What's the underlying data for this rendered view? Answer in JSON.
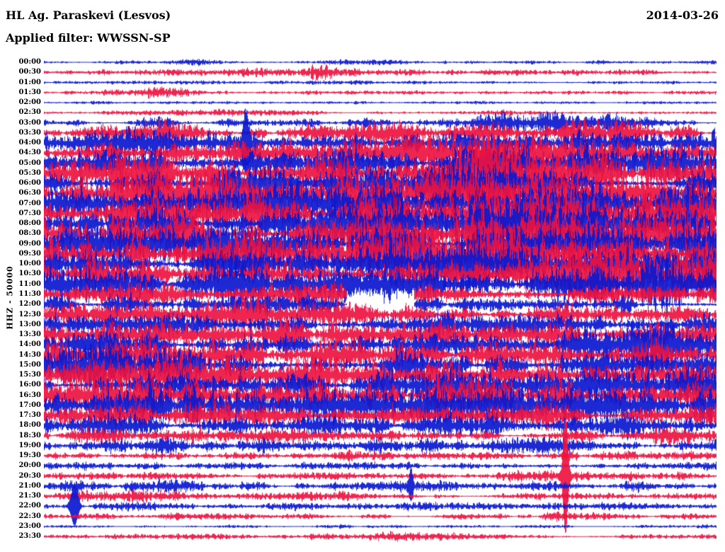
{
  "header": {
    "station": "HL Ag. Paraskevi (Lesvos)",
    "date": "2014-03-26",
    "filter": "Applied filter: WWSSN-SP"
  },
  "axis": {
    "y_label": "HHZ - 50000"
  },
  "chart_data": {
    "type": "line",
    "subtype": "helicorder-daily-seismogram",
    "title": "HL Ag. Paraskevi (Lesvos)",
    "date": "2014-03-26",
    "channel": "HHZ",
    "scale": 50000,
    "filter": "WWSSN-SP",
    "row_interval_minutes": 30,
    "rows_count": 48,
    "legend_position": "none",
    "grid": false,
    "colors": {
      "blue": "#0a18cf",
      "red": "#ec1240"
    },
    "amplitude_note": "env = 12 relative amplitude control points across each 30-min row (1.0 = full-scale excursion); sp = transient spikes [x_fraction, rel_amplitude, width_px]; gap = data gap [x_fraction_start, x_fraction_end]",
    "rows": [
      {
        "t": "00:00",
        "c": "b",
        "env": [
          0.06,
          0.05,
          0.07,
          0.06,
          0.05,
          0.06,
          0.06,
          0.05,
          0.06,
          0.06,
          0.05,
          0.05
        ]
      },
      {
        "t": "00:30",
        "c": "r",
        "env": [
          0.07,
          0.07,
          0.08,
          0.1,
          0.22,
          0.18,
          0.08,
          0.07,
          0.09,
          0.07,
          0.07,
          0.07
        ]
      },
      {
        "t": "01:00",
        "c": "b",
        "env": [
          0.05,
          0.05,
          0.06,
          0.05,
          0.05,
          0.06,
          0.05,
          0.05,
          0.05,
          0.05,
          0.05,
          0.05
        ]
      },
      {
        "t": "01:30",
        "c": "r",
        "env": [
          0.06,
          0.06,
          0.22,
          0.18,
          0.07,
          0.06,
          0.06,
          0.06,
          0.06,
          0.06,
          0.06,
          0.06
        ]
      },
      {
        "t": "02:00",
        "c": "b",
        "env": [
          0.04,
          0.04,
          0.04,
          0.04,
          0.04,
          0.04,
          0.04,
          0.04,
          0.04,
          0.04,
          0.04,
          0.04
        ]
      },
      {
        "t": "02:30",
        "c": "r",
        "env": [
          0.05,
          0.05,
          0.06,
          0.1,
          0.08,
          0.05,
          0.05,
          0.05,
          0.06,
          0.05,
          0.05,
          0.05
        ]
      },
      {
        "t": "03:00",
        "c": "b",
        "env": [
          0.1,
          0.1,
          0.18,
          0.12,
          0.1,
          0.1,
          0.12,
          0.25,
          0.35,
          0.3,
          0.15,
          0.1
        ]
      },
      {
        "t": "03:30",
        "c": "r",
        "env": [
          0.15,
          0.2,
          0.3,
          0.25,
          0.2,
          0.3,
          0.25,
          0.2,
          0.25,
          0.5,
          0.3,
          0.15
        ]
      },
      {
        "t": "04:00",
        "c": "b",
        "env": [
          0.35,
          0.4,
          0.35,
          0.45,
          0.35,
          0.3,
          0.35,
          0.3,
          0.35,
          0.45,
          0.55,
          0.5
        ],
        "sp": [
          [
            0.3,
            0.9,
            4
          ]
        ]
      },
      {
        "t": "04:30",
        "c": "r",
        "env": [
          0.25,
          0.3,
          0.3,
          0.35,
          0.35,
          0.45,
          0.5,
          0.4,
          0.45,
          0.4,
          0.35,
          0.3
        ]
      },
      {
        "t": "05:00",
        "c": "b",
        "env": [
          0.35,
          0.4,
          0.4,
          0.35,
          0.4,
          0.45,
          0.55,
          0.6,
          0.65,
          0.6,
          0.55,
          0.5
        ]
      },
      {
        "t": "05:30",
        "c": "r",
        "env": [
          0.4,
          0.45,
          0.45,
          0.4,
          0.45,
          0.55,
          0.6,
          0.85,
          0.9,
          0.65,
          0.55,
          0.5
        ]
      },
      {
        "t": "06:00",
        "c": "b",
        "env": [
          0.45,
          0.5,
          0.55,
          0.5,
          0.45,
          0.5,
          0.55,
          0.5,
          0.55,
          0.5,
          0.45,
          0.45
        ]
      },
      {
        "t": "06:30",
        "c": "r",
        "env": [
          0.55,
          0.65,
          0.7,
          0.6,
          0.55,
          0.6,
          0.65,
          0.7,
          0.7,
          0.65,
          0.6,
          0.55
        ]
      },
      {
        "t": "07:00",
        "c": "b",
        "env": [
          0.45,
          0.5,
          0.55,
          0.5,
          0.5,
          0.55,
          0.5,
          0.55,
          0.5,
          0.55,
          0.5,
          0.45
        ]
      },
      {
        "t": "07:30",
        "c": "r",
        "env": [
          0.5,
          0.55,
          0.55,
          0.5,
          0.55,
          0.6,
          0.65,
          0.85,
          0.8,
          0.6,
          0.55,
          0.5
        ]
      },
      {
        "t": "08:00",
        "c": "b",
        "env": [
          0.45,
          0.5,
          0.5,
          0.45,
          0.55,
          0.65,
          0.55,
          0.5,
          0.65,
          0.7,
          0.55,
          0.5
        ]
      },
      {
        "t": "08:30",
        "c": "r",
        "env": [
          0.55,
          0.6,
          0.6,
          0.55,
          0.6,
          0.65,
          0.6,
          0.65,
          0.7,
          0.65,
          0.6,
          0.55
        ]
      },
      {
        "t": "09:00",
        "c": "b",
        "env": [
          0.5,
          0.55,
          0.5,
          0.5,
          0.55,
          0.5,
          0.55,
          0.5,
          0.55,
          0.5,
          0.5,
          0.45
        ]
      },
      {
        "t": "09:30",
        "c": "r",
        "env": [
          0.55,
          0.75,
          0.7,
          0.55,
          0.6,
          0.7,
          0.75,
          0.7,
          0.6,
          0.55,
          0.55,
          0.5
        ]
      },
      {
        "t": "10:00",
        "c": "b",
        "env": [
          0.4,
          0.45,
          0.4,
          0.4,
          0.45,
          0.55,
          0.65,
          0.6,
          0.45,
          0.55,
          0.7,
          0.6
        ]
      },
      {
        "t": "10:30",
        "c": "r",
        "env": [
          0.5,
          0.55,
          0.5,
          0.5,
          0.55,
          0.5,
          0.55,
          0.5,
          0.55,
          0.7,
          0.75,
          0.55
        ]
      },
      {
        "t": "11:00",
        "c": "b",
        "env": [
          0.6,
          0.55,
          0.45,
          0.55,
          0.6,
          0.45,
          0.6,
          0.5,
          0.45,
          0.55,
          0.7,
          0.65
        ]
      },
      {
        "t": "11:30",
        "c": "r",
        "env": [
          0.3,
          0.35,
          0.3,
          0.3,
          0.35,
          0.3,
          0.3,
          0.3,
          0.28,
          0.32,
          0.28,
          0.26
        ],
        "gap": [
          0.45,
          0.55
        ]
      },
      {
        "t": "12:00",
        "c": "b",
        "env": [
          0.28,
          0.32,
          0.3,
          0.28,
          0.32,
          0.28,
          0.28,
          0.3,
          0.28,
          0.3,
          0.28,
          0.26
        ],
        "gap": [
          0.45,
          0.55
        ]
      },
      {
        "t": "12:30",
        "c": "r",
        "env": [
          0.3,
          0.35,
          0.3,
          0.35,
          0.4,
          0.35,
          0.3,
          0.35,
          0.3,
          0.35,
          0.3,
          0.3
        ]
      },
      {
        "t": "13:00",
        "c": "b",
        "env": [
          0.3,
          0.3,
          0.35,
          0.3,
          0.3,
          0.35,
          0.3,
          0.3,
          0.35,
          0.3,
          0.3,
          0.3
        ]
      },
      {
        "t": "13:30",
        "c": "r",
        "env": [
          0.35,
          0.35,
          0.4,
          0.35,
          0.4,
          0.35,
          0.4,
          0.35,
          0.4,
          0.35,
          0.35,
          0.3
        ]
      },
      {
        "t": "14:00",
        "c": "b",
        "env": [
          0.35,
          0.4,
          0.35,
          0.4,
          0.35,
          0.4,
          0.45,
          0.4,
          0.35,
          0.45,
          0.65,
          0.7
        ]
      },
      {
        "t": "14:30",
        "c": "r",
        "env": [
          0.4,
          0.4,
          0.45,
          0.4,
          0.45,
          0.4,
          0.45,
          0.4,
          0.45,
          0.4,
          0.4,
          0.35
        ]
      },
      {
        "t": "15:00",
        "c": "b",
        "env": [
          0.65,
          0.55,
          0.45,
          0.4,
          0.4,
          0.45,
          0.4,
          0.4,
          0.45,
          0.4,
          0.4,
          0.4
        ]
      },
      {
        "t": "15:30",
        "c": "r",
        "env": [
          0.35,
          0.35,
          0.45,
          0.5,
          0.45,
          0.4,
          0.35,
          0.4,
          0.35,
          0.4,
          0.35,
          0.35
        ]
      },
      {
        "t": "16:00",
        "c": "b",
        "env": [
          0.35,
          0.35,
          0.4,
          0.5,
          0.4,
          0.35,
          0.4,
          0.35,
          0.35,
          0.45,
          0.55,
          0.5
        ]
      },
      {
        "t": "16:30",
        "c": "r",
        "env": [
          0.55,
          0.5,
          0.45,
          0.4,
          0.45,
          0.5,
          0.55,
          0.45,
          0.4,
          0.55,
          0.65,
          0.6
        ]
      },
      {
        "t": "17:00",
        "c": "b",
        "env": [
          0.4,
          0.45,
          0.7,
          0.55,
          0.45,
          0.4,
          0.45,
          0.4,
          0.4,
          0.5,
          0.6,
          0.6
        ]
      },
      {
        "t": "17:30",
        "c": "r",
        "env": [
          0.3,
          0.35,
          0.5,
          0.45,
          0.35,
          0.3,
          0.35,
          0.3,
          0.35,
          0.3,
          0.35,
          0.3
        ]
      },
      {
        "t": "18:00",
        "c": "b",
        "env": [
          0.25,
          0.3,
          0.25,
          0.3,
          0.25,
          0.3,
          0.45,
          0.4,
          0.3,
          0.25,
          0.3,
          0.25
        ]
      },
      {
        "t": "18:30",
        "c": "r",
        "env": [
          0.15,
          0.18,
          0.15,
          0.18,
          0.28,
          0.18,
          0.15,
          0.18,
          0.15,
          0.18,
          0.3,
          0.18
        ]
      },
      {
        "t": "19:00",
        "c": "b",
        "env": [
          0.18,
          0.2,
          0.28,
          0.32,
          0.22,
          0.18,
          0.2,
          0.18,
          0.2,
          0.18,
          0.2,
          0.18
        ]
      },
      {
        "t": "19:30",
        "c": "r",
        "env": [
          0.14,
          0.12,
          0.1,
          0.12,
          0.1,
          0.12,
          0.1,
          0.12,
          0.1,
          0.28,
          0.14,
          0.1
        ]
      },
      {
        "t": "20:00",
        "c": "b",
        "env": [
          0.12,
          0.1,
          0.1,
          0.1,
          0.1,
          0.1,
          0.12,
          0.1,
          0.1,
          0.1,
          0.1,
          0.1
        ]
      },
      {
        "t": "20:30",
        "c": "r",
        "env": [
          0.1,
          0.12,
          0.1,
          0.12,
          0.1,
          0.12,
          0.1,
          0.12,
          0.14,
          0.12,
          0.14,
          0.1
        ],
        "sp": [
          [
            0.775,
            2.2,
            4
          ]
        ]
      },
      {
        "t": "21:00",
        "c": "b",
        "env": [
          0.12,
          0.28,
          0.3,
          0.18,
          0.12,
          0.14,
          0.12,
          0.12,
          0.12,
          0.12,
          0.14,
          0.12
        ],
        "sp": [
          [
            0.545,
            0.5,
            3
          ]
        ]
      },
      {
        "t": "21:30",
        "c": "r",
        "env": [
          0.1,
          0.18,
          0.16,
          0.1,
          0.1,
          0.1,
          0.1,
          0.1,
          0.1,
          0.1,
          0.1,
          0.1
        ]
      },
      {
        "t": "22:00",
        "c": "b",
        "env": [
          0.12,
          0.14,
          0.1,
          0.1,
          0.1,
          0.1,
          0.1,
          0.1,
          0.1,
          0.1,
          0.1,
          0.1
        ],
        "sp": [
          [
            0.045,
            0.7,
            6
          ]
        ]
      },
      {
        "t": "22:30",
        "c": "r",
        "env": [
          0.08,
          0.08,
          0.08,
          0.08,
          0.08,
          0.08,
          0.08,
          0.08,
          0.14,
          0.12,
          0.08,
          0.08
        ]
      },
      {
        "t": "23:00",
        "c": "b",
        "env": [
          0.05,
          0.05,
          0.05,
          0.05,
          0.05,
          0.05,
          0.05,
          0.05,
          0.05,
          0.05,
          0.05,
          0.05
        ]
      },
      {
        "t": "23:30",
        "c": "r",
        "env": [
          0.06,
          0.06,
          0.06,
          0.06,
          0.06,
          0.14,
          0.12,
          0.06,
          0.06,
          0.06,
          0.06,
          0.06
        ]
      }
    ]
  }
}
